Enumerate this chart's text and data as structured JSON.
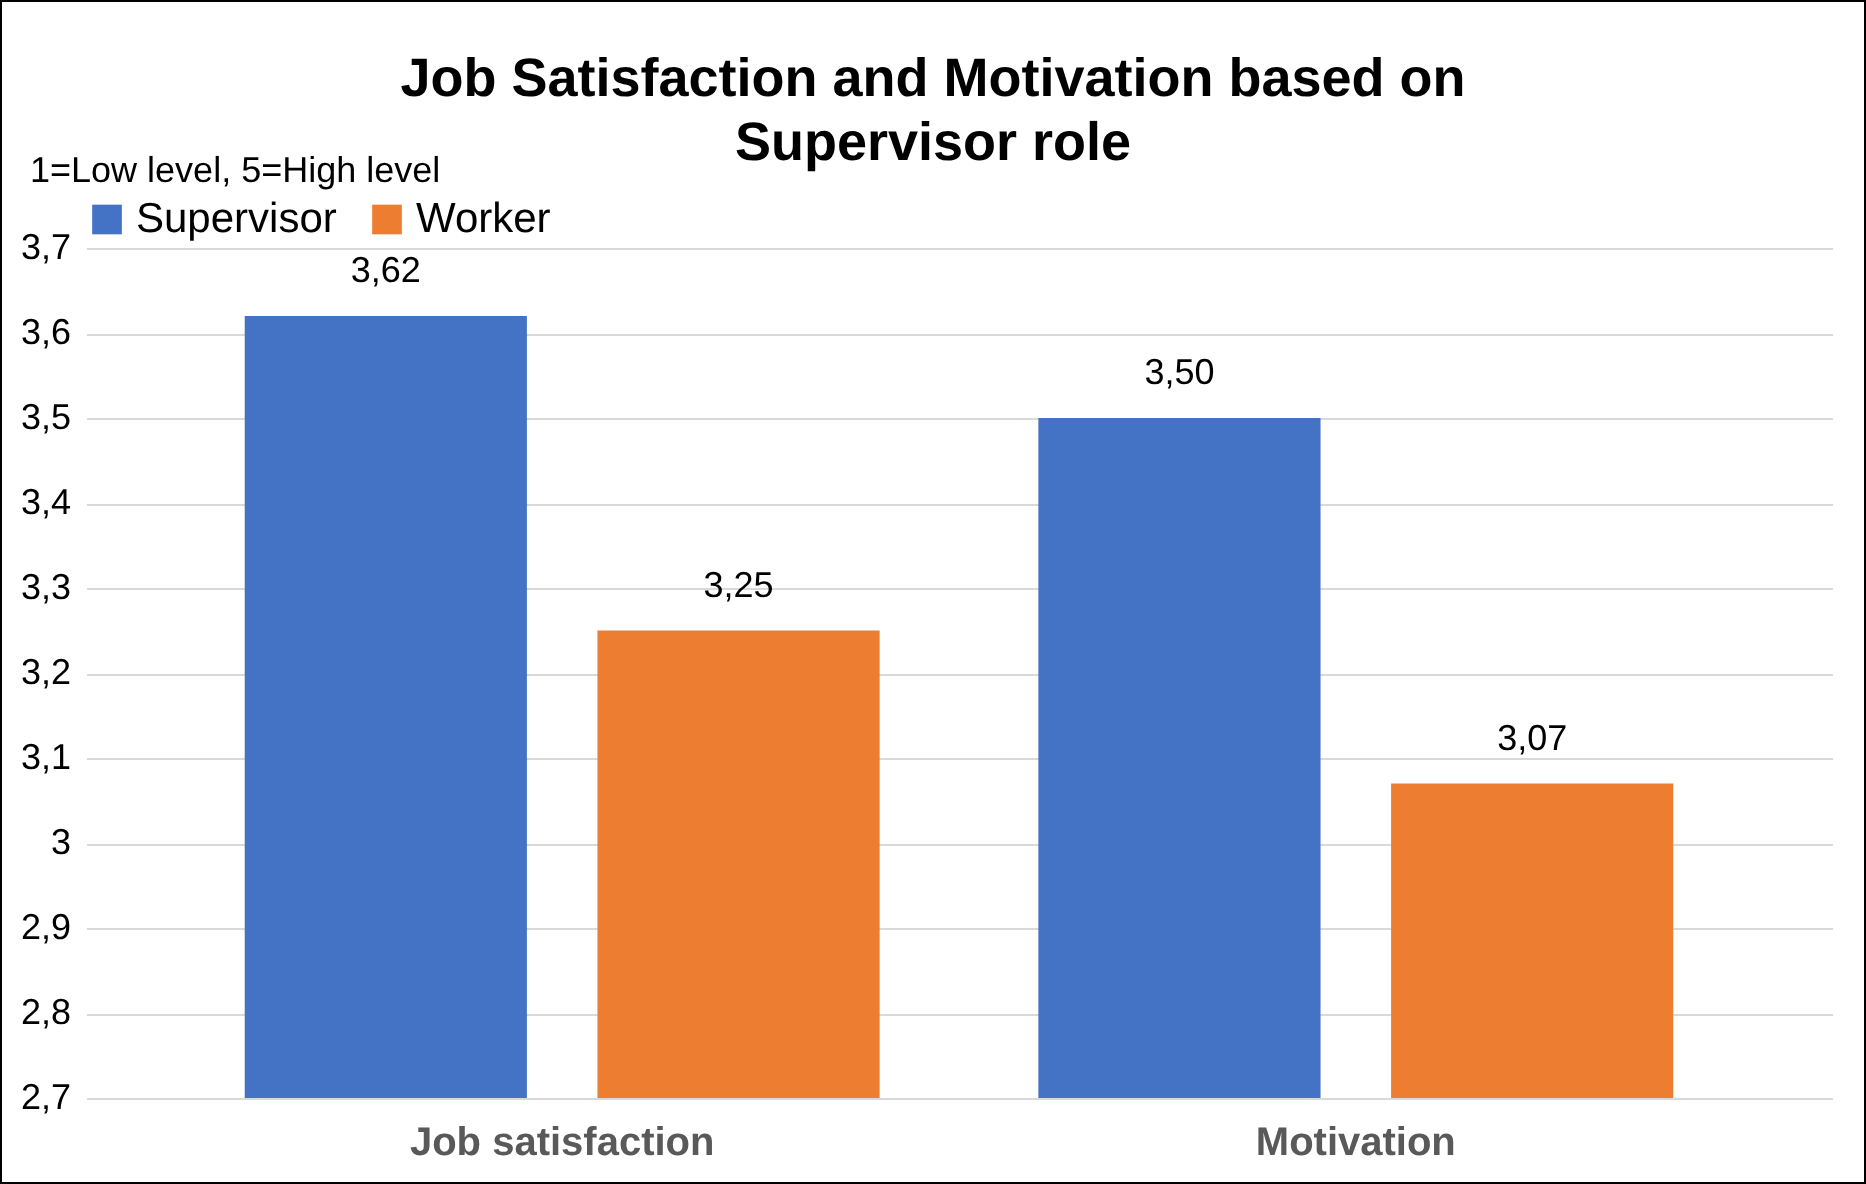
{
  "chart_data": {
    "type": "bar",
    "title": "Job Satisfaction and Motivation based on Supervisor role",
    "subtitle": "1=Low level, 5=High level",
    "categories": [
      "Job satisfaction",
      "Motivation"
    ],
    "series": [
      {
        "name": "Supervisor",
        "color": "#4472c4",
        "values": [
          3.62,
          3.5
        ],
        "value_labels": [
          "3,62",
          "3,50"
        ]
      },
      {
        "name": "Worker",
        "color": "#ed7d31",
        "values": [
          3.25,
          3.07
        ],
        "value_labels": [
          "3,25",
          "3,07"
        ]
      }
    ],
    "ylim": [
      2.7,
      3.7
    ],
    "yticks": [
      {
        "value": 2.7,
        "label": "2,7"
      },
      {
        "value": 2.8,
        "label": "2,8"
      },
      {
        "value": 2.9,
        "label": "2,9"
      },
      3,
      {
        "value": 3.1,
        "label": "3,1"
      },
      {
        "value": 3.2,
        "label": "3,2"
      },
      {
        "value": 3.3,
        "label": "3,3"
      },
      {
        "value": 3.4,
        "label": "3,4"
      },
      {
        "value": 3.5,
        "label": "3,5"
      },
      {
        "value": 3.6,
        "label": "3,6"
      },
      {
        "value": 3.7,
        "label": "3,7"
      }
    ],
    "grid": "y",
    "legend": "top"
  }
}
